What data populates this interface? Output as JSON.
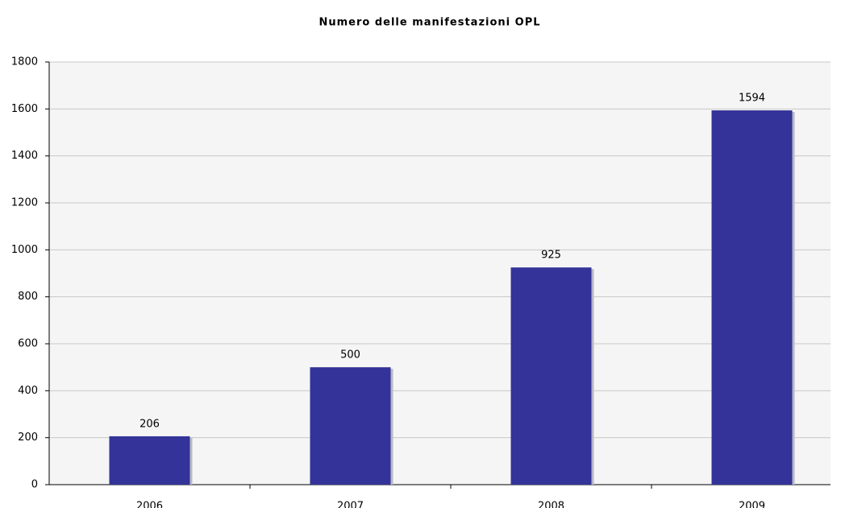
{
  "chart_data": {
    "type": "bar",
    "title": "Numero delle manifestazioni OPL",
    "categories": [
      "2006",
      "2007",
      "2008",
      "2009"
    ],
    "values": [
      206,
      500,
      925,
      1594
    ],
    "color": "#333399",
    "ylim": [
      0,
      1800
    ],
    "yticks": [
      0,
      200,
      400,
      600,
      800,
      1000,
      1200,
      1400,
      1600,
      1800
    ],
    "grid": true
  }
}
